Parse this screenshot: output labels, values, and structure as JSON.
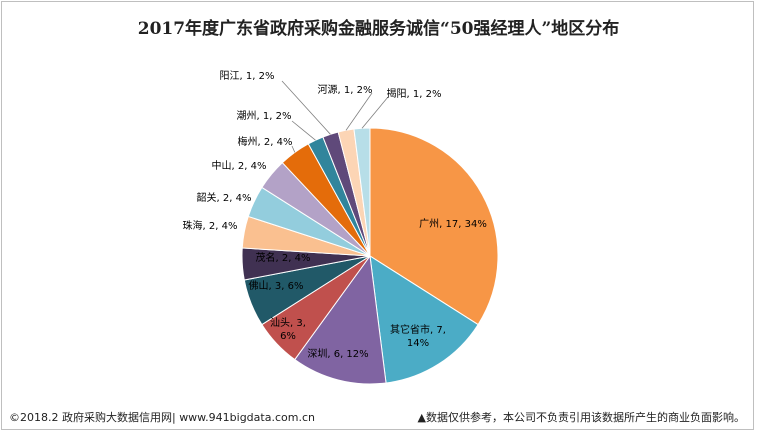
{
  "chart_data": {
    "type": "pie",
    "title": "2017年度广东省政府采购金融服务诚信“50强经理人”地区分布",
    "slices": [
      {
        "label": "广州",
        "value": 17,
        "percent": "34%",
        "color": "#F79646",
        "text": "广州, 17, 34%",
        "text2": ""
      },
      {
        "label": "其它省市",
        "value": 7,
        "percent": "14%",
        "color": "#4BACC6",
        "text": "其它省市, 7,",
        "text2": "14%"
      },
      {
        "label": "深圳",
        "value": 6,
        "percent": "12%",
        "color": "#8064A2",
        "text": "深圳, 6, 12%",
        "text2": ""
      },
      {
        "label": "汕头",
        "value": 3,
        "percent": "6%",
        "color": "#C0504D",
        "text": "汕头, 3,",
        "text2": "6%"
      },
      {
        "label": "佛山",
        "value": 3,
        "percent": "6%",
        "color": "#215968",
        "text": "佛山, 3, 6%",
        "text2": ""
      },
      {
        "label": "茂名",
        "value": 2,
        "percent": "4%",
        "color": "#403152",
        "text": "茂名, 2, 4%",
        "text2": ""
      },
      {
        "label": "珠海",
        "value": 2,
        "percent": "4%",
        "color": "#FAC090",
        "text": "珠海, 2, 4%",
        "text2": ""
      },
      {
        "label": "韶关",
        "value": 2,
        "percent": "4%",
        "color": "#93CDDD",
        "text": "韶关, 2, 4%",
        "text2": ""
      },
      {
        "label": "中山",
        "value": 2,
        "percent": "4%",
        "color": "#B3A2C7",
        "text": "中山, 2, 4%",
        "text2": ""
      },
      {
        "label": "梅州",
        "value": 2,
        "percent": "4%",
        "color": "#E46C0A",
        "text": "梅州, 2, 4%",
        "text2": ""
      },
      {
        "label": "潮州",
        "value": 1,
        "percent": "2%",
        "color": "#31859C",
        "text": "潮州, 1, 2%",
        "text2": ""
      },
      {
        "label": "阳江",
        "value": 1,
        "percent": "2%",
        "color": "#5F497A",
        "text": "阳江, 1, 2%",
        "text2": ""
      },
      {
        "label": "河源",
        "value": 1,
        "percent": "2%",
        "color": "#FCD5B5",
        "text": "河源, 1, 2%",
        "text2": ""
      },
      {
        "label": "揭阳",
        "value": 1,
        "percent": "2%",
        "color": "#B7DEE8",
        "text": "揭阳, 1, 2%",
        "text2": ""
      }
    ]
  },
  "footer": {
    "left": "©2018.2 政府采购大数据信用网| www.941bigdata.com.cn",
    "right": "▲数据仅供参考，本公司不负责引用该数据所产生的商业负面影响。"
  }
}
